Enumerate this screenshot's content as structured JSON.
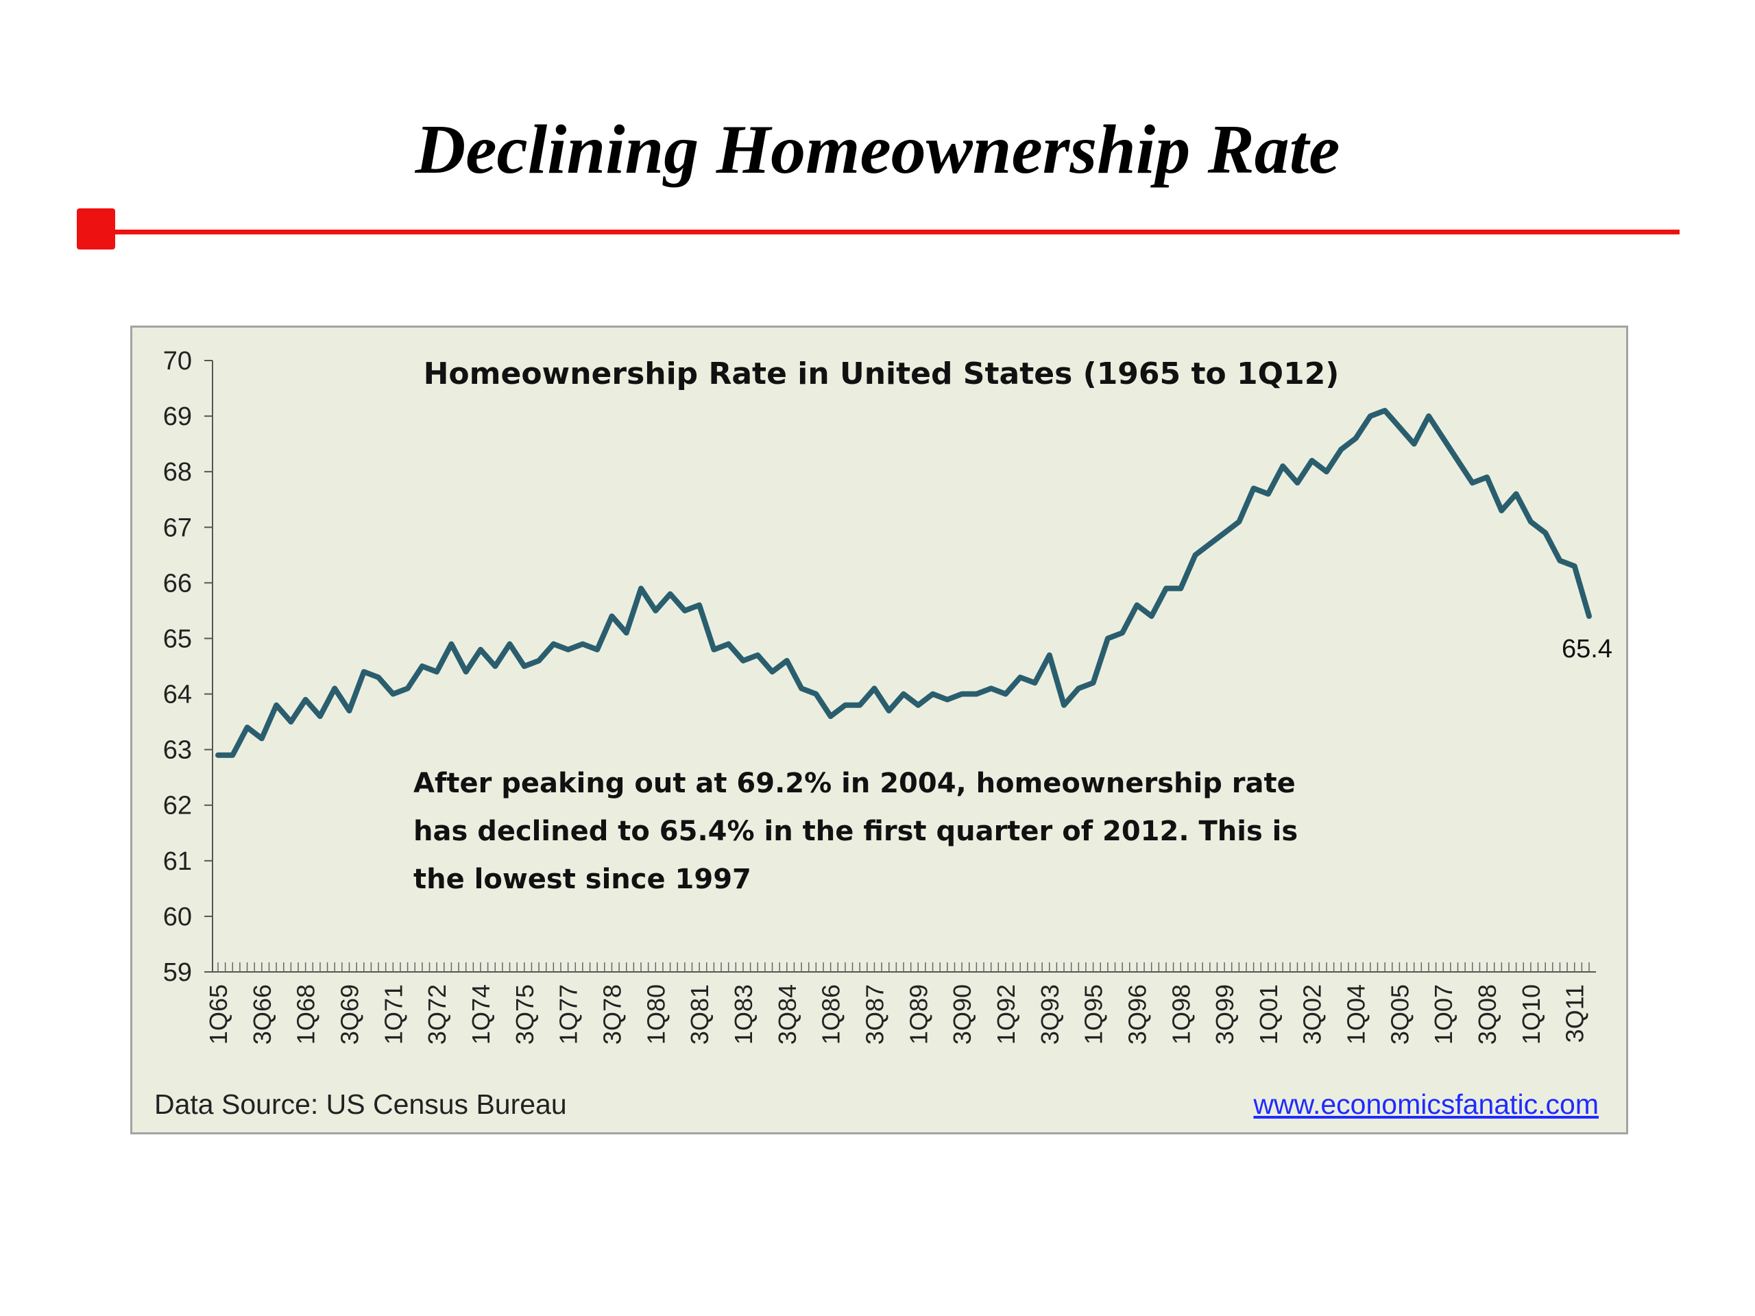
{
  "slide": {
    "title": "Declining Homeownership Rate",
    "accent_color": "#ee1111"
  },
  "chart_data": {
    "type": "line",
    "title": "Homeownership Rate in United States (1965 to 1Q12)",
    "xlabel": "",
    "ylabel": "",
    "ylim": [
      59,
      70
    ],
    "yticks": [
      59,
      60,
      61,
      62,
      63,
      64,
      65,
      66,
      67,
      68,
      69,
      70
    ],
    "x_tick_labels": [
      "1Q65",
      "3Q66",
      "1Q68",
      "3Q69",
      "1Q71",
      "3Q72",
      "1Q74",
      "3Q75",
      "1Q77",
      "3Q78",
      "1Q80",
      "3Q81",
      "1Q83",
      "3Q84",
      "1Q86",
      "3Q87",
      "1Q89",
      "3Q90",
      "1Q92",
      "3Q93",
      "1Q95",
      "3Q96",
      "1Q98",
      "3Q99",
      "1Q01",
      "3Q02",
      "1Q04",
      "3Q05",
      "1Q07",
      "3Q08",
      "1Q10",
      "3Q11"
    ],
    "line_color": "#2a5e6e",
    "grid": false,
    "legend": "none",
    "series": [
      {
        "points": [
          [
            "1Q65",
            62.9
          ],
          [
            "3Q65",
            62.9
          ],
          [
            "1Q66",
            63.4
          ],
          [
            "3Q66",
            63.2
          ],
          [
            "1Q67",
            63.8
          ],
          [
            "3Q67",
            63.5
          ],
          [
            "1Q68",
            63.9
          ],
          [
            "3Q68",
            63.6
          ],
          [
            "1Q69",
            64.1
          ],
          [
            "3Q69",
            63.7
          ],
          [
            "1Q70",
            64.4
          ],
          [
            "3Q70",
            64.3
          ],
          [
            "1Q71",
            64.0
          ],
          [
            "3Q71",
            64.1
          ],
          [
            "1Q72",
            64.5
          ],
          [
            "3Q72",
            64.4
          ],
          [
            "1Q73",
            64.9
          ],
          [
            "3Q73",
            64.4
          ],
          [
            "1Q74",
            64.8
          ],
          [
            "3Q74",
            64.5
          ],
          [
            "1Q75",
            64.9
          ],
          [
            "3Q75",
            64.5
          ],
          [
            "1Q76",
            64.6
          ],
          [
            "3Q76",
            64.9
          ],
          [
            "1Q77",
            64.8
          ],
          [
            "3Q77",
            64.9
          ],
          [
            "1Q78",
            64.8
          ],
          [
            "3Q78",
            65.4
          ],
          [
            "1Q79",
            65.1
          ],
          [
            "3Q79",
            65.9
          ],
          [
            "1Q80",
            65.5
          ],
          [
            "3Q80",
            65.8
          ],
          [
            "1Q81",
            65.5
          ],
          [
            "3Q81",
            65.6
          ],
          [
            "1Q82",
            64.8
          ],
          [
            "3Q82",
            64.9
          ],
          [
            "1Q83",
            64.6
          ],
          [
            "3Q83",
            64.7
          ],
          [
            "1Q84",
            64.4
          ],
          [
            "3Q84",
            64.6
          ],
          [
            "1Q85",
            64.1
          ],
          [
            "3Q85",
            64.0
          ],
          [
            "1Q86",
            63.6
          ],
          [
            "3Q86",
            63.8
          ],
          [
            "1Q87",
            63.8
          ],
          [
            "3Q87",
            64.1
          ],
          [
            "1Q88",
            63.7
          ],
          [
            "3Q88",
            64.0
          ],
          [
            "1Q89",
            63.8
          ],
          [
            "3Q89",
            64.0
          ],
          [
            "1Q90",
            63.9
          ],
          [
            "3Q90",
            64.0
          ],
          [
            "1Q91",
            64.0
          ],
          [
            "3Q91",
            64.1
          ],
          [
            "1Q92",
            64.0
          ],
          [
            "3Q92",
            64.3
          ],
          [
            "1Q93",
            64.2
          ],
          [
            "3Q93",
            64.7
          ],
          [
            "1Q94",
            63.8
          ],
          [
            "3Q94",
            64.1
          ],
          [
            "1Q95",
            64.2
          ],
          [
            "3Q95",
            65.0
          ],
          [
            "1Q96",
            65.1
          ],
          [
            "3Q96",
            65.6
          ],
          [
            "1Q97",
            65.4
          ],
          [
            "3Q97",
            65.9
          ],
          [
            "1Q98",
            65.9
          ],
          [
            "3Q98",
            66.5
          ],
          [
            "1Q99",
            66.7
          ],
          [
            "3Q99",
            66.9
          ],
          [
            "1Q00",
            67.1
          ],
          [
            "3Q00",
            67.7
          ],
          [
            "1Q01",
            67.6
          ],
          [
            "3Q01",
            68.1
          ],
          [
            "1Q02",
            67.8
          ],
          [
            "3Q02",
            68.2
          ],
          [
            "1Q03",
            68.0
          ],
          [
            "3Q03",
            68.4
          ],
          [
            "1Q04",
            68.6
          ],
          [
            "3Q04",
            69.0
          ],
          [
            "1Q05",
            69.1
          ],
          [
            "3Q05",
            68.8
          ],
          [
            "1Q06",
            68.5
          ],
          [
            "3Q06",
            69.0
          ],
          [
            "1Q07",
            68.6
          ],
          [
            "3Q07",
            68.2
          ],
          [
            "1Q08",
            67.8
          ],
          [
            "3Q08",
            67.9
          ],
          [
            "1Q09",
            67.3
          ],
          [
            "3Q09",
            67.6
          ],
          [
            "1Q10",
            67.1
          ],
          [
            "3Q10",
            66.9
          ],
          [
            "1Q11",
            66.4
          ],
          [
            "3Q11",
            66.3
          ],
          [
            "1Q12",
            65.4
          ]
        ]
      }
    ],
    "last_value_label": "65.4",
    "annotation_lines": [
      "After peaking out at 69.2% in 2004, homeownership rate",
      "has declined to 65.4% in the first quarter of 2012. This is",
      "the lowest since 1997"
    ],
    "source": "Data Source: US Census Bureau",
    "link": "www.economicsfanatic.com"
  }
}
